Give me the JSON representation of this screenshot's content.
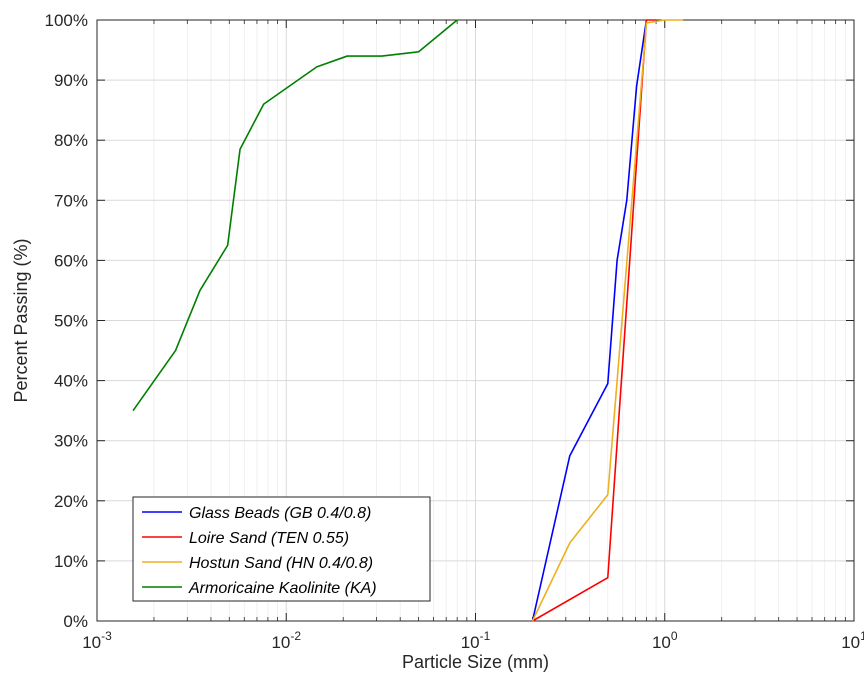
{
  "chart_data": {
    "type": "line",
    "title": "",
    "xlabel": "Particle Size (mm)",
    "ylabel": "Percent Passing (%)",
    "x_scale": "log",
    "xlim": [
      0.001,
      10
    ],
    "ylim": [
      0,
      100
    ],
    "grid": true,
    "legend_position": "bottom-left",
    "x_ticks": [
      {
        "value": 0.001,
        "base": "10",
        "exp": "-3"
      },
      {
        "value": 0.01,
        "base": "10",
        "exp": "-2"
      },
      {
        "value": 0.1,
        "base": "10",
        "exp": "-1"
      },
      {
        "value": 1,
        "base": "10",
        "exp": "0"
      },
      {
        "value": 10,
        "base": "10",
        "exp": "1"
      }
    ],
    "y_ticks": [
      {
        "value": 0,
        "label": "0%"
      },
      {
        "value": 10,
        "label": "10%"
      },
      {
        "value": 20,
        "label": "20%"
      },
      {
        "value": 30,
        "label": "30%"
      },
      {
        "value": 40,
        "label": "40%"
      },
      {
        "value": 50,
        "label": "50%"
      },
      {
        "value": 60,
        "label": "60%"
      },
      {
        "value": 70,
        "label": "70%"
      },
      {
        "value": 80,
        "label": "80%"
      },
      {
        "value": 90,
        "label": "90%"
      },
      {
        "value": 100,
        "label": "100%"
      }
    ],
    "series": [
      {
        "name": "Glass Beads (GB 0.4/0.8)",
        "color": "#0000ff",
        "points": [
          [
            0.2,
            0
          ],
          [
            0.315,
            27.5
          ],
          [
            0.5,
            39.5
          ],
          [
            0.56,
            60
          ],
          [
            0.63,
            70
          ],
          [
            0.71,
            89
          ],
          [
            0.8,
            100
          ]
        ]
      },
      {
        "name": "Loire Sand (TEN 0.55)",
        "color": "#ff0000",
        "points": [
          [
            0.2,
            0
          ],
          [
            0.5,
            7.2
          ],
          [
            0.8,
            100
          ],
          [
            0.9,
            100
          ]
        ]
      },
      {
        "name": "Hostun Sand (HN 0.4/0.8)",
        "color": "#edb120",
        "points": [
          [
            0.2,
            0
          ],
          [
            0.315,
            13
          ],
          [
            0.5,
            21
          ],
          [
            0.8,
            99.5
          ],
          [
            1.0,
            100
          ],
          [
            1.25,
            100
          ]
        ]
      },
      {
        "name": "Armoricaine Kaolinite (KA)",
        "color": "#008000",
        "points": [
          [
            0.00155,
            35
          ],
          [
            0.0026,
            45
          ],
          [
            0.0035,
            55
          ],
          [
            0.0049,
            62.5
          ],
          [
            0.0057,
            78.5
          ],
          [
            0.0076,
            86
          ],
          [
            0.0145,
            92.2
          ],
          [
            0.021,
            94
          ],
          [
            0.032,
            94
          ],
          [
            0.05,
            94.7
          ],
          [
            0.08,
            100
          ]
        ]
      }
    ]
  }
}
